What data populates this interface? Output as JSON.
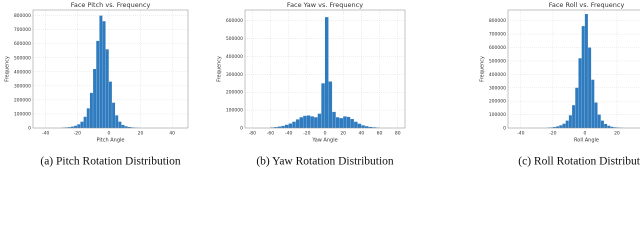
{
  "chart_data": [
    {
      "type": "histogram",
      "title": "Face Pitch vs. Frequency",
      "x_label": "Pitch Angle",
      "y_label": "Frequency",
      "caption": "(a) Pitch Rotation Distribution",
      "color": "#2f7bbf",
      "grid": true,
      "bins": [
        -30,
        -28,
        -26,
        -24,
        -22,
        -20,
        -18,
        -16,
        -14,
        -12,
        -10,
        -8,
        -6,
        -4,
        -2,
        0,
        2,
        4,
        6,
        8,
        10,
        12,
        14,
        16,
        18,
        20
      ],
      "values": [
        2000,
        4000,
        6000,
        10000,
        16000,
        26000,
        45000,
        80000,
        140000,
        250000,
        420000,
        620000,
        800000,
        760000,
        560000,
        330000,
        180000,
        90000,
        45000,
        22000,
        12000,
        7000,
        4000,
        2000,
        1000
      ],
      "xlim": [
        -48,
        50
      ],
      "xticks": [
        -40,
        -20,
        0,
        20,
        40
      ],
      "ylim": [
        0,
        840000
      ],
      "yticks": [
        0,
        100000,
        200000,
        300000,
        400000,
        500000,
        600000,
        700000,
        800000
      ]
    },
    {
      "type": "histogram",
      "title": "Face Yaw vs. Frequency",
      "x_label": "Yaw Angle",
      "y_label": "Frequency",
      "caption": "(b) Yaw Rotation Distribution",
      "color": "#2f7bbf",
      "grid": true,
      "bins": [
        -60,
        -56,
        -52,
        -48,
        -44,
        -40,
        -36,
        -32,
        -28,
        -24,
        -20,
        -16,
        -12,
        -8,
        -4,
        0,
        4,
        8,
        12,
        16,
        20,
        24,
        28,
        32,
        36,
        40,
        44,
        48,
        52,
        56,
        60
      ],
      "values": [
        3000,
        5000,
        8000,
        12000,
        18000,
        25000,
        35000,
        48000,
        60000,
        68000,
        70000,
        65000,
        60000,
        80000,
        250000,
        620000,
        260000,
        90000,
        60000,
        55000,
        65000,
        62000,
        50000,
        35000,
        24000,
        15000,
        10000,
        6000,
        4000,
        2000
      ],
      "xlim": [
        -88,
        88
      ],
      "xticks": [
        -80,
        -60,
        -40,
        -20,
        0,
        20,
        40,
        60,
        80
      ],
      "ylim": [
        0,
        660000
      ],
      "yticks": [
        0,
        100000,
        200000,
        300000,
        400000,
        500000,
        600000
      ]
    },
    {
      "type": "histogram",
      "title": "Face Roll vs. Frequency",
      "x_label": "Roll Angle",
      "y_label": "Frequency",
      "caption": "(c) Roll Rotation Distribution",
      "color": "#2f7bbf",
      "grid": true,
      "bins": [
        -24,
        -22,
        -20,
        -18,
        -16,
        -14,
        -12,
        -10,
        -8,
        -6,
        -4,
        -2,
        0,
        2,
        4,
        6,
        8,
        10,
        12,
        14,
        16,
        18,
        20,
        22,
        24
      ],
      "values": [
        2000,
        4000,
        7000,
        12000,
        20000,
        32000,
        55000,
        95000,
        170000,
        300000,
        520000,
        760000,
        850000,
        600000,
        360000,
        190000,
        100000,
        55000,
        30000,
        17000,
        9000,
        5000,
        3000,
        1500
      ],
      "xlim": [
        -48,
        50
      ],
      "xticks": [
        -40,
        -20,
        0,
        20,
        40
      ],
      "ylim": [
        0,
        880000
      ],
      "yticks": [
        0,
        100000,
        200000,
        300000,
        400000,
        500000,
        600000,
        700000,
        800000
      ]
    }
  ]
}
